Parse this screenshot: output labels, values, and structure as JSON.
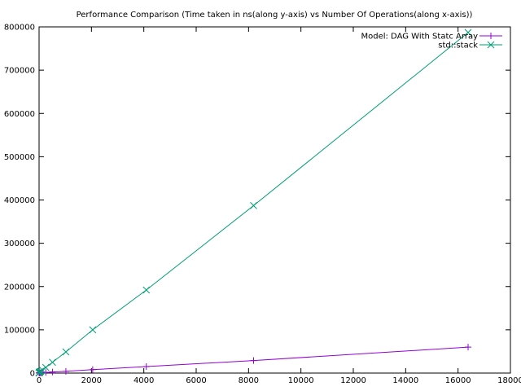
{
  "chart_data": {
    "type": "line",
    "title": "Performance Comparison (Time taken in ns(along y-axis) vs Number Of Operations(along x-axis))",
    "xlabel": "",
    "ylabel": "",
    "xlim": [
      0,
      18000
    ],
    "ylim": [
      0,
      800000
    ],
    "x_ticks": [
      0,
      2000,
      4000,
      6000,
      8000,
      10000,
      12000,
      14000,
      16000,
      18000
    ],
    "y_ticks": [
      0,
      100000,
      200000,
      300000,
      400000,
      500000,
      600000,
      700000,
      800000
    ],
    "grid": false,
    "legend_position": "top-right",
    "series": [
      {
        "name": "Model: DAG With Statc Array",
        "color": "#9400d3",
        "marker": "plus",
        "x": [
          1,
          2,
          4,
          8,
          16,
          32,
          64,
          128,
          256,
          512,
          1024,
          2048,
          4096,
          8192,
          16384
        ],
        "y": [
          100,
          150,
          200,
          300,
          400,
          500,
          700,
          1000,
          1500,
          2500,
          4000,
          8000,
          15000,
          29000,
          60000
        ]
      },
      {
        "name": "std::stack",
        "color": "#009e73",
        "marker": "x",
        "x": [
          1,
          2,
          4,
          8,
          16,
          32,
          64,
          128,
          256,
          512,
          1024,
          2048,
          4096,
          8192,
          16384
        ],
        "y": [
          300,
          500,
          800,
          1200,
          2000,
          3000,
          4000,
          7000,
          13000,
          25000,
          49000,
          100000,
          192000,
          387000,
          787000
        ]
      }
    ]
  }
}
